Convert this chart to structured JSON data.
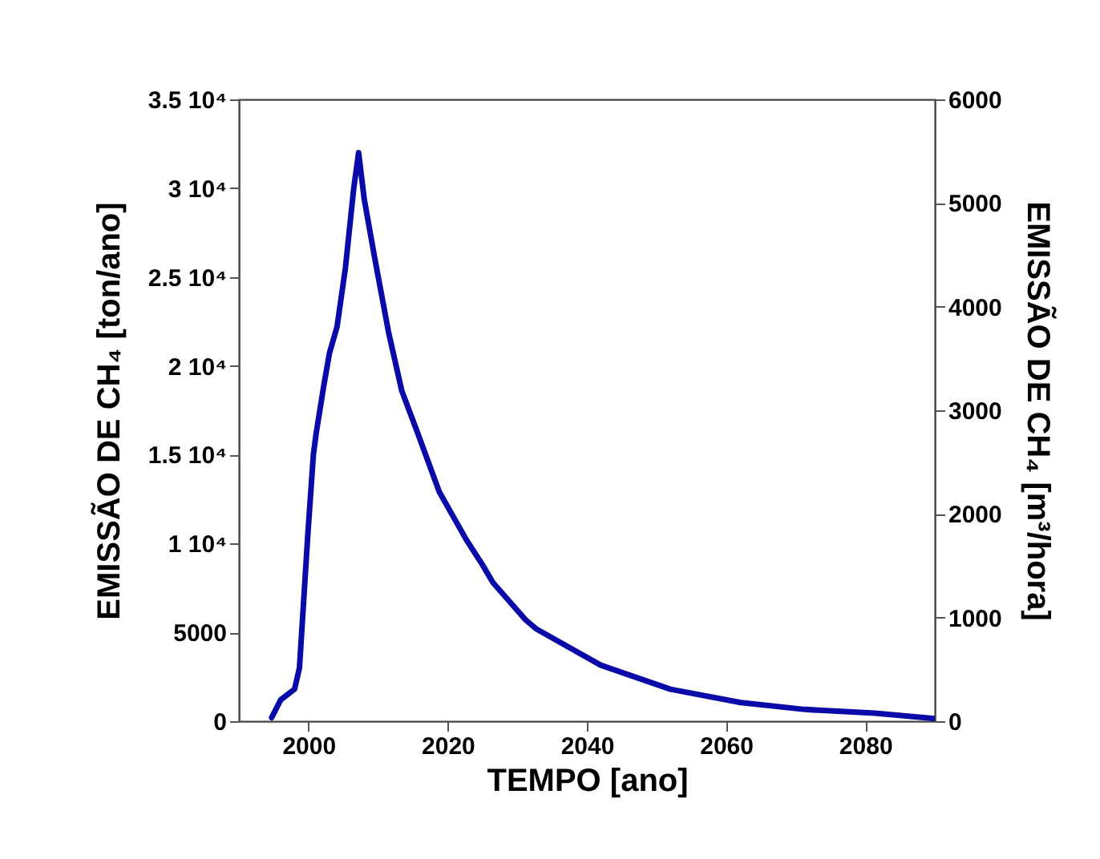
{
  "chart_data": {
    "type": "line",
    "xlabel": "TEMPO [ano]",
    "ylabel": "EMISSÃO DE CH₄  [ton/ano]",
    "y2label": "EMISSÃO DE CH₄  [m³/hora]",
    "series": [
      {
        "color": "#0a0aa8",
        "x": [
          1994.7,
          1996,
          1998,
          1998.7,
          1999.9,
          2000.7,
          2001.1,
          2002.2,
          2003,
          2004.1,
          2005.3,
          2006.5,
          2007.2,
          2008,
          2009.5,
          2011.5,
          2013.4,
          2015.7,
          2018.8,
          2022.7,
          2025,
          2026.5,
          2031.2,
          2032.7,
          2042,
          2052,
          2062.1,
          2071.3,
          2081.4,
          2089.9
        ],
        "values": [
          200,
          1200,
          1800,
          3000,
          10500,
          15000,
          16200,
          18900,
          20700,
          22200,
          25500,
          30000,
          32000,
          29400,
          26100,
          21900,
          18600,
          16200,
          12900,
          10200,
          8800,
          7800,
          5700,
          5200,
          3150,
          1800,
          1050,
          660,
          450,
          150
        ]
      }
    ],
    "xlim": [
      1990,
      2090
    ],
    "xticks": [
      2000,
      2020,
      2040,
      2060,
      2080
    ],
    "ylim": [
      0,
      35000
    ],
    "yticks": [
      {
        "value": 0,
        "label": "0"
      },
      {
        "value": 5000,
        "label": "5000"
      },
      {
        "value": 10000,
        "label": "1 10⁴"
      },
      {
        "value": 15000,
        "label": "1.5 10⁴"
      },
      {
        "value": 20000,
        "label": "2 10⁴"
      },
      {
        "value": 25000,
        "label": "2.5 10⁴"
      },
      {
        "value": 30000,
        "label": "3 10⁴"
      },
      {
        "value": 35000,
        "label": "3.5 10⁴"
      }
    ],
    "y2lim": [
      0,
      6000
    ],
    "y2ticks": [
      0,
      1000,
      2000,
      3000,
      4000,
      5000,
      6000
    ],
    "grid": false
  }
}
